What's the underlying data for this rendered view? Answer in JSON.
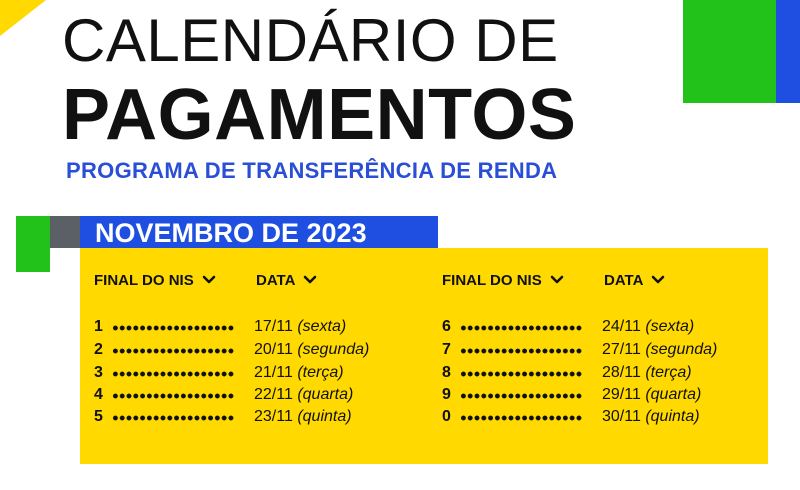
{
  "header": {
    "title_line1": "CALENDÁRIO DE",
    "title_line2": "PAGAMENTOS",
    "subtitle": "PROGRAMA DE TRANSFERÊNCIA DE RENDA"
  },
  "month_label": "NOVEMBRO DE 2023",
  "columns": {
    "nis_header": "FINAL DO NIS",
    "date_header": "DATA"
  },
  "schedule_left": [
    {
      "nis": "1",
      "date": "17/11",
      "day": "(sexta)"
    },
    {
      "nis": "2",
      "date": "20/11",
      "day": "(segunda)"
    },
    {
      "nis": "3",
      "date": "21/11",
      "day": "(terça)"
    },
    {
      "nis": "4",
      "date": "22/11",
      "day": "(quarta)"
    },
    {
      "nis": "5",
      "date": "23/11",
      "day": "(quinta)"
    }
  ],
  "schedule_right": [
    {
      "nis": "6",
      "date": "24/11",
      "day": "(sexta)"
    },
    {
      "nis": "7",
      "date": "27/11",
      "day": "(segunda)"
    },
    {
      "nis": "8",
      "date": "28/11",
      "day": "(terça)"
    },
    {
      "nis": "9",
      "date": "29/11",
      "day": "(quarta)"
    },
    {
      "nis": "0",
      "date": "30/11",
      "day": "(quinta)"
    }
  ],
  "colors": {
    "yellow": "#ffd900",
    "green": "#22c21a",
    "blue": "#1f4fe0",
    "gray": "#5b5f66",
    "subtitle_blue": "#2a4fd6"
  },
  "icons": {
    "column_sort": "chevron-down-icon"
  }
}
